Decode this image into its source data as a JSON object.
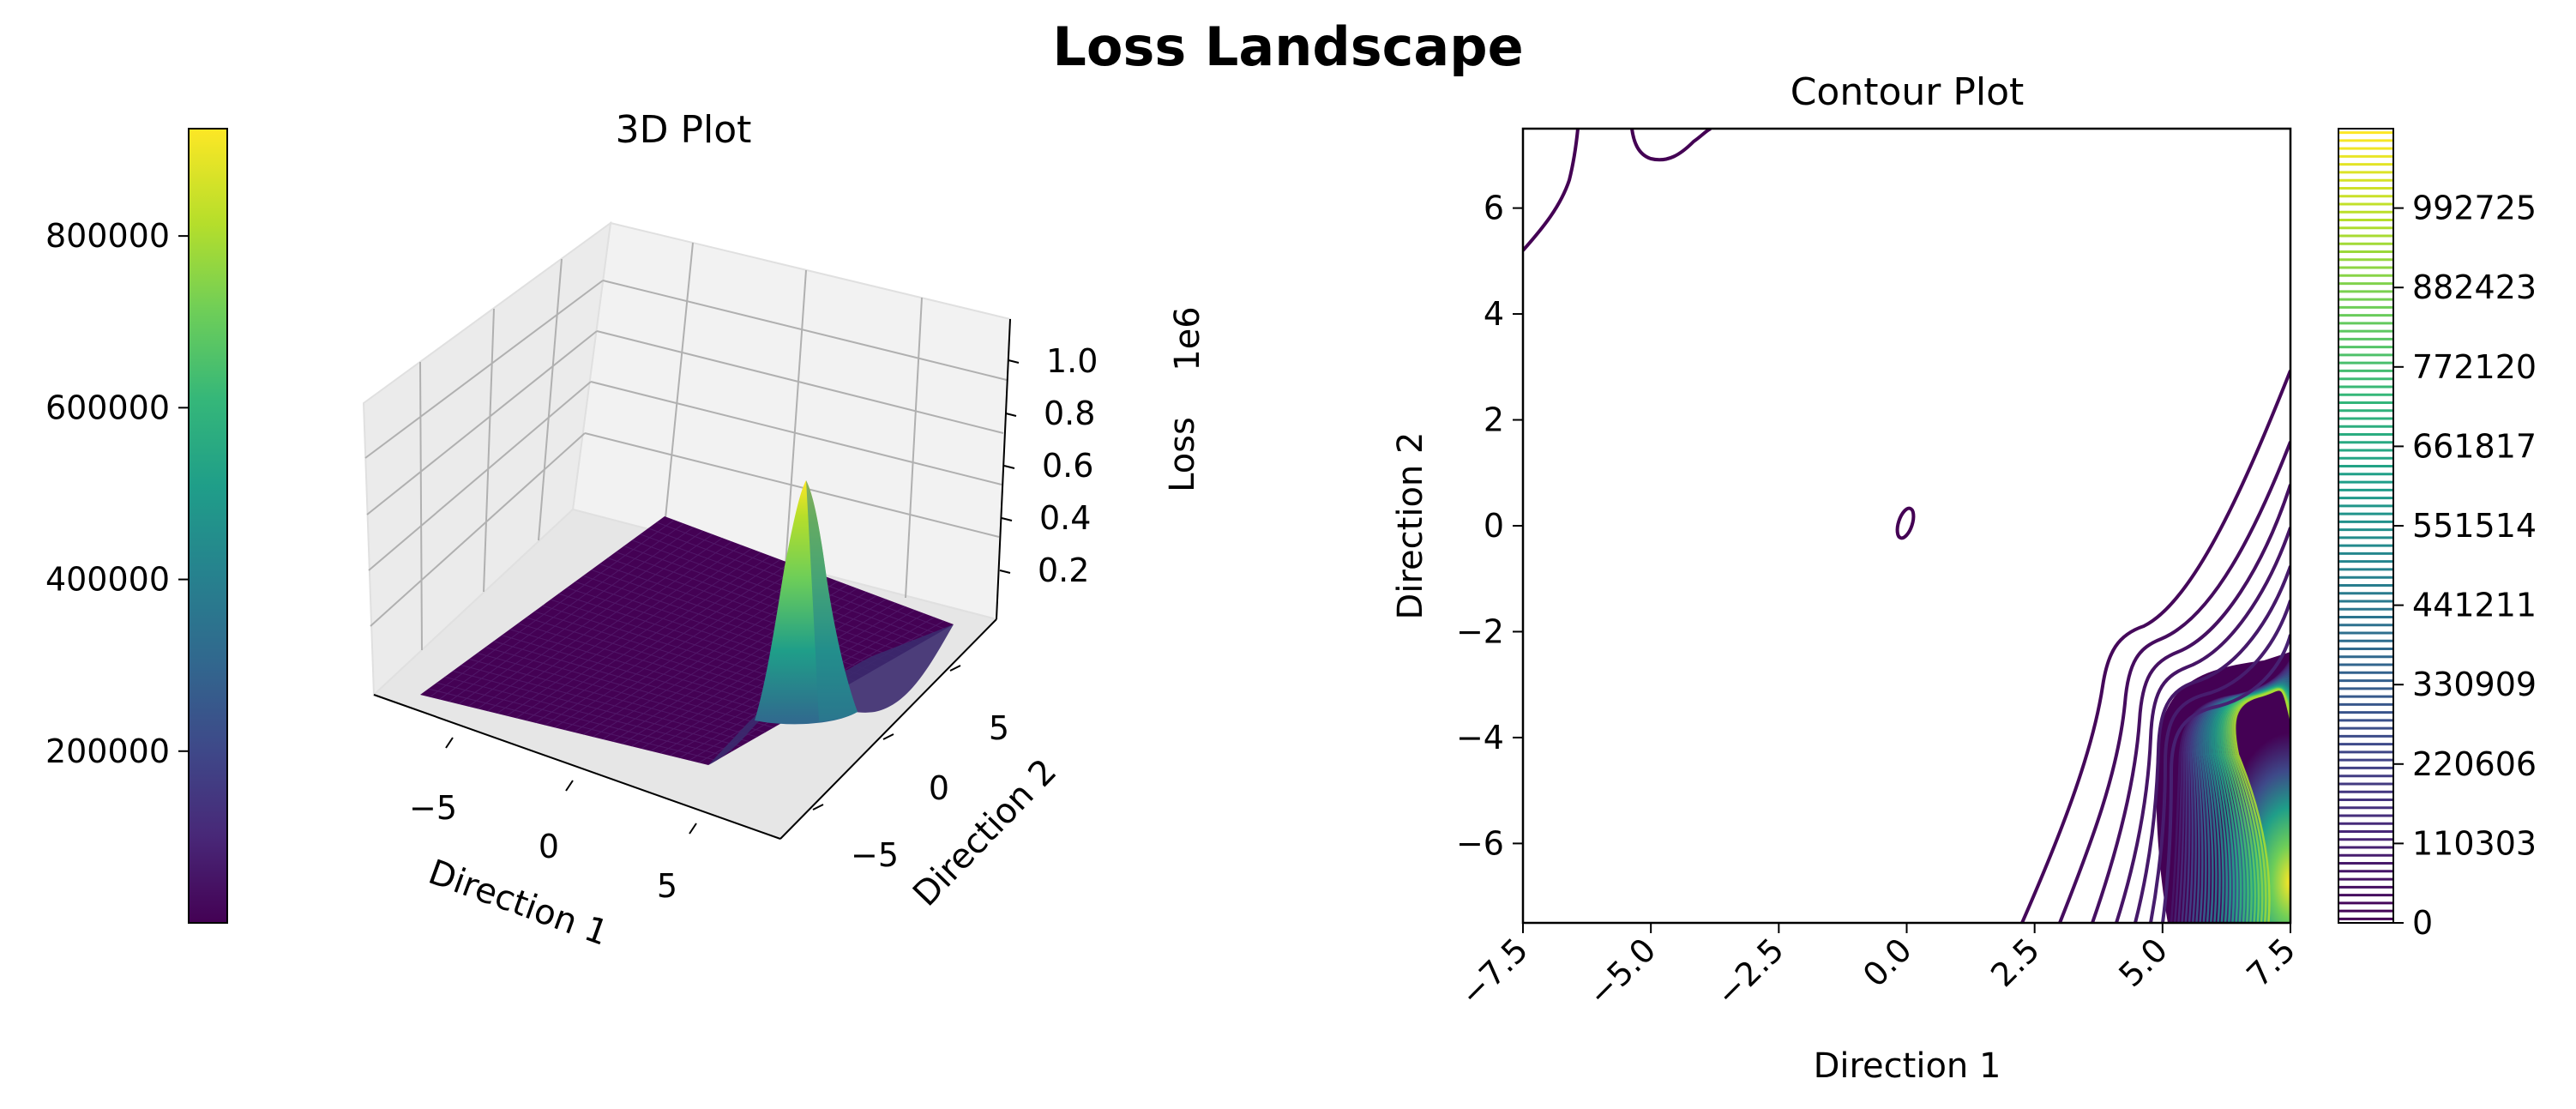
{
  "figure": {
    "suptitle": "Loss Landscape"
  },
  "colors": {
    "viridis": [
      "#440154",
      "#482878",
      "#3e4989",
      "#31688e",
      "#26828e",
      "#1f9e89",
      "#35b779",
      "#6ece58",
      "#b5de2b",
      "#fde725"
    ],
    "pane": "#f2f2f2",
    "grid": "#b0b0b0"
  },
  "chart_data": [
    {
      "type": "surface3d",
      "title": "3D Plot",
      "xlabel": "Direction 1",
      "ylabel": "Direction 2",
      "zlabel": "Loss",
      "z_offset_label": "1e6",
      "xticks": [
        "−5",
        "0",
        "5"
      ],
      "yticks": [
        "−5",
        "0",
        "5"
      ],
      "zticks": [
        "0.2",
        "0.4",
        "0.6",
        "0.8",
        "1.0"
      ],
      "xlim": [
        -7.5,
        7.5
      ],
      "ylim": [
        -7.5,
        7.5
      ],
      "zlim": [
        0,
        1100000
      ],
      "peak": {
        "x": 6.5,
        "y": -5.5,
        "z": 1050000
      },
      "colorbar": {
        "ticks": [
          "200000",
          "400000",
          "600000",
          "800000"
        ],
        "range": [
          0,
          925000
        ]
      }
    },
    {
      "type": "contour",
      "title": "Contour Plot",
      "xlabel": "Direction 1",
      "ylabel": "Direction 2",
      "xticks": [
        "−7.5",
        "−5.0",
        "−2.5",
        "0.0",
        "2.5",
        "5.0",
        "7.5"
      ],
      "yticks": [
        "−6",
        "−4",
        "−2",
        "0",
        "2",
        "4",
        "6"
      ],
      "xlim": [
        -7.5,
        7.5
      ],
      "ylim": [
        -7.5,
        7.5
      ],
      "colorbar": {
        "ticks": [
          "0",
          "110303",
          "220606",
          "330909",
          "441211",
          "551514",
          "661817",
          "772120",
          "882423",
          "992725"
        ],
        "range": [
          0,
          1103028
        ]
      }
    }
  ]
}
